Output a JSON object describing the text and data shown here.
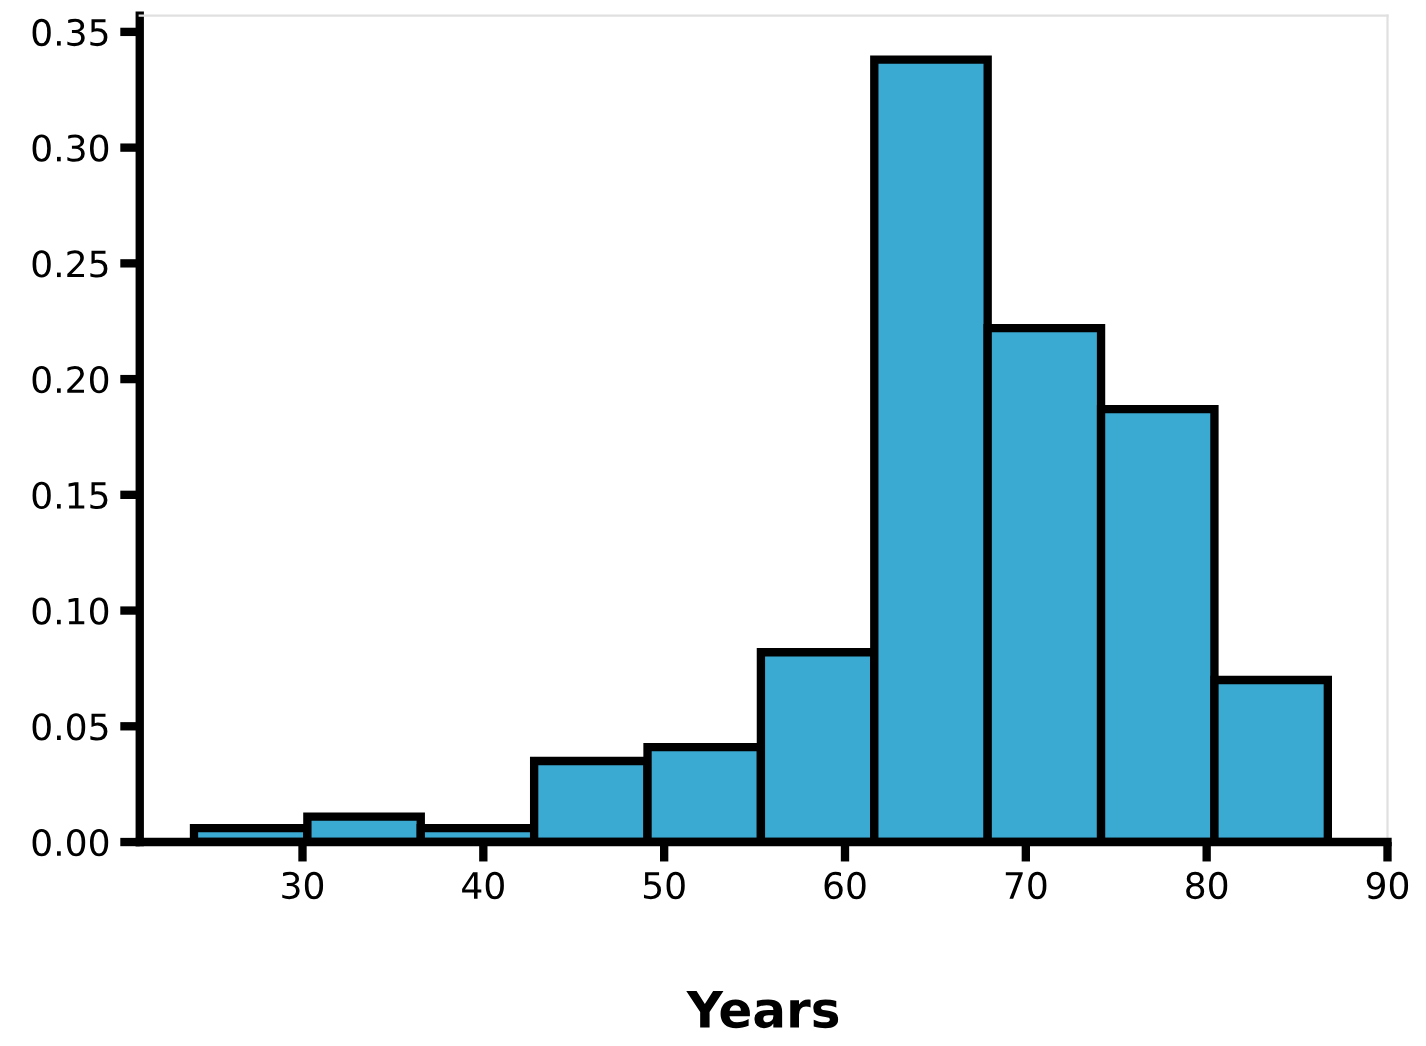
{
  "chart_data": {
    "type": "histogram",
    "xlabel": "Years",
    "bins": [
      24.0,
      30.27,
      36.54,
      42.81,
      49.08,
      55.35,
      61.62,
      67.89,
      74.16,
      80.43,
      86.7
    ],
    "values": [
      0.006,
      0.011,
      0.006,
      0.035,
      0.041,
      0.082,
      0.338,
      0.222,
      0.187,
      0.07
    ],
    "color": "#3aaad2",
    "xlim": [
      21,
      90
    ],
    "xticks": [
      30,
      40,
      50,
      60,
      70,
      80,
      90
    ],
    "ylim": [
      0,
      0.357
    ],
    "yticks": [
      {
        "value": 0,
        "label": "0.00"
      },
      {
        "value": 0.05,
        "label": "0.05"
      },
      {
        "value": 0.1,
        "label": "0.10"
      },
      {
        "value": 0.15,
        "label": "0.15"
      },
      {
        "value": 0.2,
        "label": "0.20"
      },
      {
        "value": 0.25,
        "label": "0.25"
      },
      {
        "value": 0.3,
        "label": "0.30"
      },
      {
        "value": 0.35,
        "label": "0.35"
      }
    ],
    "grid": false
  }
}
